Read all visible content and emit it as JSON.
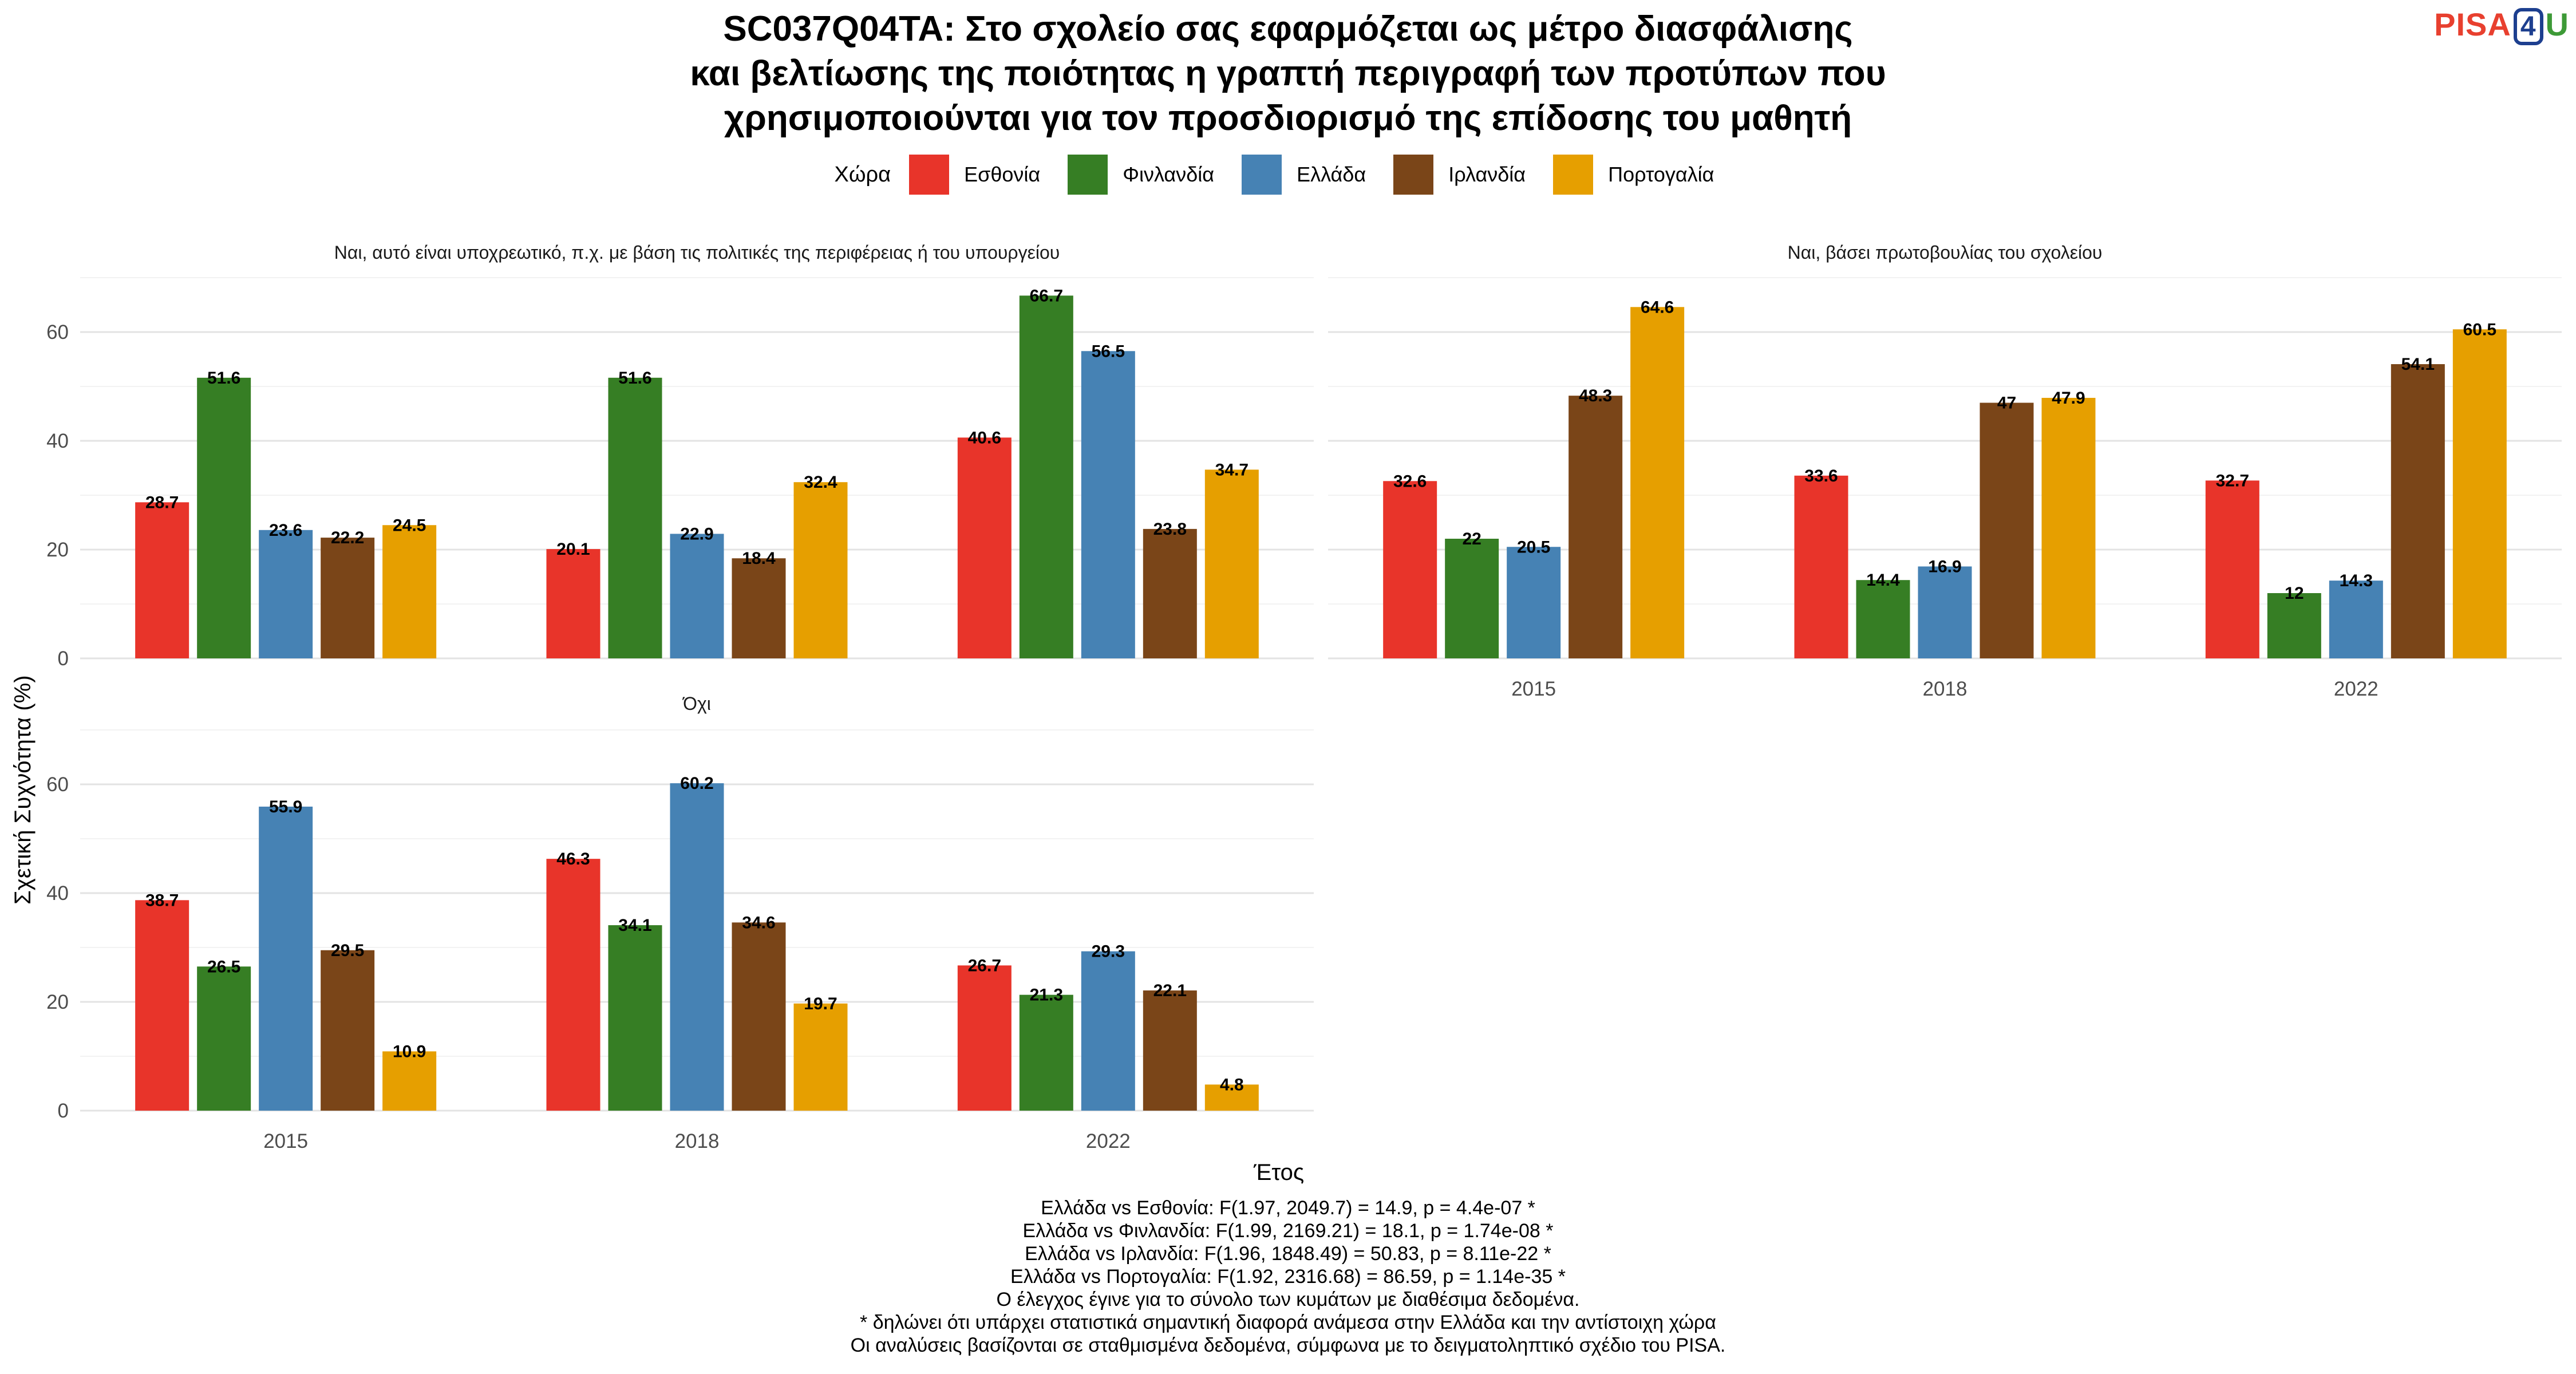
{
  "title_lines": [
    "SC037Q04TA: Στο σχολείο σας εφαρμόζεται ως μέτρο διασφάλισης",
    "και βελτίωσης της ποιότητας η γραπτή περιγραφή των προτύπων που",
    "χρησιμοποιούνται για τον προσδιορισμό της επίδοσης του μαθητή"
  ],
  "logo": {
    "text1": "PISA",
    "text2": "4",
    "text3": "U"
  },
  "legend": {
    "title": "Χώρα",
    "items": [
      {
        "label": "Εσθονία",
        "color": "#e8342a"
      },
      {
        "label": "Φινλανδία",
        "color": "#367e24"
      },
      {
        "label": "Ελλάδα",
        "color": "#4682b4"
      },
      {
        "label": "Ιρλανδία",
        "color": "#7a4518"
      },
      {
        "label": "Πορτογαλία",
        "color": "#e69f00"
      }
    ]
  },
  "axes": {
    "ylabel": "Σχετική Συχνότητα (%)",
    "xlabel": "Έτος"
  },
  "chart_data": [
    {
      "type": "bar",
      "facet": "Ναι, αυτό είναι υποχρεωτικό, π.χ. με βάση τις πολιτικές της περιφέρειας ή του υπουργείου",
      "categories": [
        "2015",
        "2018",
        "2022"
      ],
      "ylim": [
        0,
        70
      ],
      "yticks": [
        0,
        20,
        40,
        60
      ],
      "series": [
        {
          "name": "Εσθονία",
          "values": [
            28.7,
            20.1,
            40.6
          ]
        },
        {
          "name": "Φινλανδία",
          "values": [
            51.6,
            51.6,
            66.7
          ]
        },
        {
          "name": "Ελλάδα",
          "values": [
            23.6,
            22.9,
            56.5
          ]
        },
        {
          "name": "Ιρλανδία",
          "values": [
            22.2,
            18.4,
            23.8
          ]
        },
        {
          "name": "Πορτογαλία",
          "values": [
            24.5,
            32.4,
            34.7
          ]
        }
      ]
    },
    {
      "type": "bar",
      "facet": "Ναι, βάσει πρωτοβουλίας του σχολείου",
      "categories": [
        "2015",
        "2018",
        "2022"
      ],
      "ylim": [
        0,
        70
      ],
      "yticks": [
        0,
        20,
        40,
        60
      ],
      "series": [
        {
          "name": "Εσθονία",
          "values": [
            32.6,
            33.6,
            32.7
          ]
        },
        {
          "name": "Φινλανδία",
          "values": [
            22,
            14.4,
            12
          ]
        },
        {
          "name": "Ελλάδα",
          "values": [
            20.5,
            16.9,
            14.3
          ]
        },
        {
          "name": "Ιρλανδία",
          "values": [
            48.3,
            47,
            54.1
          ]
        },
        {
          "name": "Πορτογαλία",
          "values": [
            64.6,
            47.9,
            60.5
          ]
        }
      ]
    },
    {
      "type": "bar",
      "facet": "Όχι",
      "categories": [
        "2015",
        "2018",
        "2022"
      ],
      "ylim": [
        0,
        70
      ],
      "yticks": [
        0,
        20,
        40,
        60
      ],
      "series": [
        {
          "name": "Εσθονία",
          "values": [
            38.7,
            46.3,
            26.7
          ]
        },
        {
          "name": "Φινλανδία",
          "values": [
            26.5,
            34.1,
            21.3
          ]
        },
        {
          "name": "Ελλάδα",
          "values": [
            55.9,
            60.2,
            29.3
          ]
        },
        {
          "name": "Ιρλανδία",
          "values": [
            29.5,
            34.6,
            22.1
          ]
        },
        {
          "name": "Πορτογαλία",
          "values": [
            10.9,
            19.7,
            4.8
          ]
        }
      ]
    }
  ],
  "notes": [
    "Ελλάδα vs Εσθονία: F(1.97, 2049.7) = 14.9, p = 4.4e-07 *",
    "Ελλάδα vs Φινλανδία: F(1.99, 2169.21) = 18.1, p = 1.74e-08 *",
    "Ελλάδα vs Ιρλανδία: F(1.96, 1848.49) = 50.83, p = 8.11e-22 *",
    "Ελλάδα vs Πορτογαλία: F(1.92, 2316.68) = 86.59, p = 1.14e-35 *",
    "Ο έλεγχος έγινε για το σύνολο των κυμάτων με διαθέσιμα δεδομένα.",
    "* δηλώνει ότι υπάρχει στατιστικά σημαντική διαφορά ανάμεσα στην Ελλάδα και την αντίστοιχη χώρα",
    "Οι αναλύσεις βασίζονται σε σταθμισμένα δεδομένα, σύμφωνα με το δειγματοληπτικό σχέδιο του PISA."
  ]
}
